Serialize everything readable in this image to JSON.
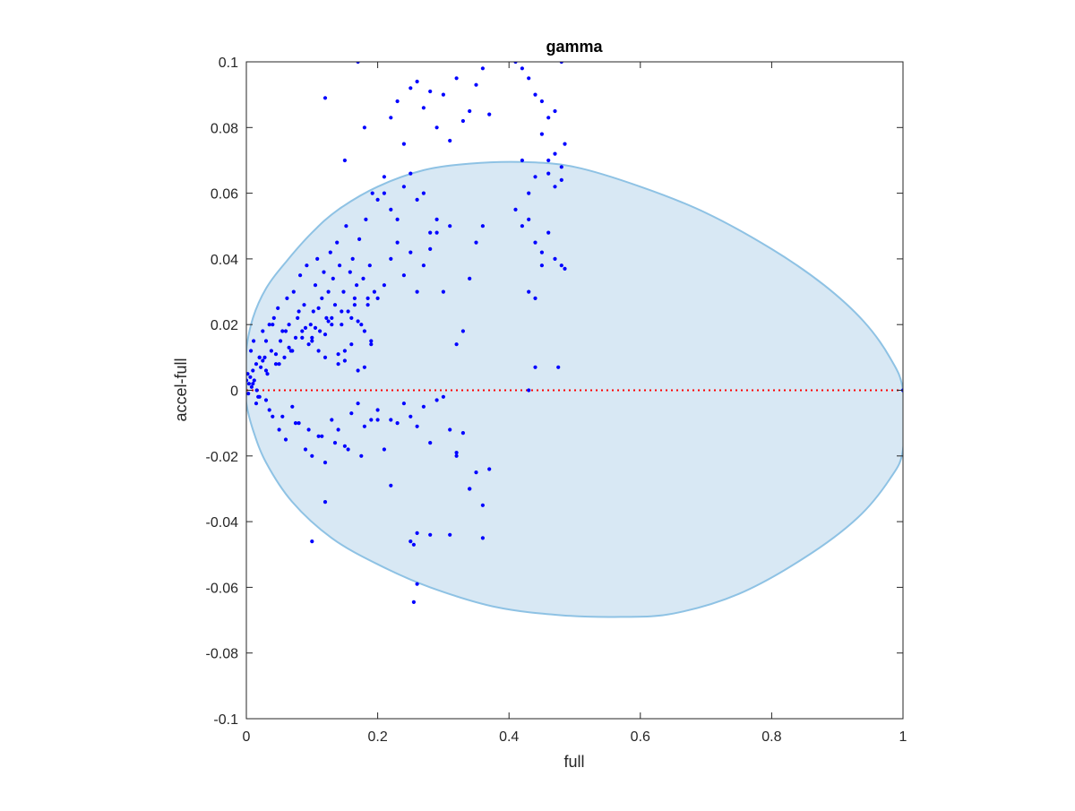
{
  "chart_data": {
    "type": "scatter",
    "title": "gamma",
    "xlabel": "full",
    "ylabel": "accel-full",
    "xlim": [
      0,
      1
    ],
    "ylim": [
      -0.1,
      0.1
    ],
    "xticks": [
      0,
      0.2,
      0.4,
      0.6,
      0.8,
      1
    ],
    "xtick_labels": [
      "0",
      "0.2",
      "0.4",
      "0.6",
      "0.8",
      "1"
    ],
    "yticks": [
      -0.1,
      -0.08,
      -0.06,
      -0.04,
      -0.02,
      0,
      0.02,
      0.04,
      0.06,
      0.08,
      0.1
    ],
    "ytick_labels": [
      "-0.1",
      "-0.08",
      "-0.06",
      "-0.04",
      "-0.02",
      "0",
      "0.02",
      "0.04",
      "0.06",
      "0.08",
      "0.1"
    ],
    "grid": false,
    "box": true,
    "colors": {
      "points": "#0000ff",
      "reference_line": "#ff0000",
      "ellipse_fill": "#d8e8f4",
      "ellipse_edge": "#8ec2e4",
      "axes": "#262626"
    },
    "reference_line": {
      "y": 0,
      "style": "dotted"
    },
    "ellipse_region": {
      "points": [
        [
          0.0,
          0.0
        ],
        [
          0.0,
          0.012
        ],
        [
          0.01,
          0.022
        ],
        [
          0.03,
          0.031
        ],
        [
          0.06,
          0.039
        ],
        [
          0.1,
          0.048
        ],
        [
          0.14,
          0.055
        ],
        [
          0.2,
          0.062
        ],
        [
          0.27,
          0.067
        ],
        [
          0.34,
          0.069
        ],
        [
          0.42,
          0.0695
        ],
        [
          0.5,
          0.068
        ],
        [
          0.6,
          0.062
        ],
        [
          0.7,
          0.054
        ],
        [
          0.8,
          0.043
        ],
        [
          0.88,
          0.032
        ],
        [
          0.94,
          0.021
        ],
        [
          0.98,
          0.01
        ],
        [
          1.0,
          0.0
        ],
        [
          1.0,
          -0.018
        ],
        [
          0.98,
          -0.027
        ],
        [
          0.93,
          -0.039
        ],
        [
          0.85,
          -0.051
        ],
        [
          0.75,
          -0.062
        ],
        [
          0.65,
          -0.068
        ],
        [
          0.57,
          -0.069
        ],
        [
          0.48,
          -0.0685
        ],
        [
          0.38,
          -0.066
        ],
        [
          0.28,
          -0.06
        ],
        [
          0.2,
          -0.053
        ],
        [
          0.13,
          -0.045
        ],
        [
          0.07,
          -0.034
        ],
        [
          0.03,
          -0.022
        ],
        [
          0.01,
          -0.012
        ],
        [
          0.0,
          -0.004
        ]
      ]
    },
    "series": [
      {
        "x": [
          0.0,
          0.002,
          0.004,
          0.006,
          0.008,
          0.01,
          0.012,
          0.015,
          0.018,
          0.02,
          0.003,
          0.007,
          0.011,
          0.016,
          0.022,
          0.025,
          0.028,
          0.032,
          0.035,
          0.038,
          0.042,
          0.045,
          0.048,
          0.052,
          0.055,
          0.058,
          0.062,
          0.065,
          0.068,
          0.072,
          0.075,
          0.078,
          0.082,
          0.085,
          0.088,
          0.092,
          0.095,
          0.098,
          0.102,
          0.105,
          0.108,
          0.112,
          0.115,
          0.118,
          0.122,
          0.125,
          0.128,
          0.132,
          0.135,
          0.138,
          0.142,
          0.145,
          0.148,
          0.152,
          0.155,
          0.158,
          0.162,
          0.165,
          0.168,
          0.172,
          0.175,
          0.178,
          0.182,
          0.185,
          0.188,
          0.192,
          0.195,
          0.03,
          0.04,
          0.05,
          0.06,
          0.07,
          0.08,
          0.09,
          0.1,
          0.11,
          0.12,
          0.13,
          0.14,
          0.15,
          0.16,
          0.17,
          0.18,
          0.19,
          0.2,
          0.21,
          0.22,
          0.23,
          0.24,
          0.25,
          0.26,
          0.27,
          0.28,
          0.29,
          0.3,
          0.31,
          0.32,
          0.33,
          0.34,
          0.35,
          0.36,
          0.37,
          0.1,
          0.11,
          0.12,
          0.13,
          0.14,
          0.15,
          0.16,
          0.17,
          0.18,
          0.19,
          0.2,
          0.21,
          0.22,
          0.23,
          0.24,
          0.25,
          0.26,
          0.27,
          0.28,
          0.29,
          0.3,
          0.31,
          0.32,
          0.33,
          0.34,
          0.35,
          0.36,
          0.12,
          0.15,
          0.17,
          0.18,
          0.21,
          0.22,
          0.23,
          0.24,
          0.25,
          0.26,
          0.27,
          0.28,
          0.29,
          0.3,
          0.31,
          0.32,
          0.33,
          0.34,
          0.35,
          0.36,
          0.37,
          0.41,
          0.42,
          0.43,
          0.44,
          0.45,
          0.46,
          0.47,
          0.48,
          0.485,
          0.41,
          0.42,
          0.43,
          0.44,
          0.45,
          0.46,
          0.47,
          0.48,
          0.42,
          0.43,
          0.44,
          0.45,
          0.46,
          0.47,
          0.48,
          0.485,
          0.43,
          0.44,
          0.45,
          0.46,
          0.47,
          0.48,
          0.2,
          0.21,
          0.22,
          0.23,
          0.24,
          0.25,
          0.26,
          0.27,
          0.28,
          0.29,
          0.02,
          0.03,
          0.04,
          0.05,
          0.06,
          0.07,
          0.08,
          0.09,
          0.1,
          0.11,
          0.12,
          0.13,
          0.14,
          0.15,
          0.16,
          0.17,
          0.18,
          0.19,
          0.2,
          0.22,
          0.25,
          0.28,
          0.32,
          0.34,
          0.36,
          0.1,
          0.12,
          0.26,
          0.31,
          0.26,
          0.255,
          0.255,
          0.475,
          0.44,
          0.43,
          1.0,
          0.01,
          0.02,
          0.03,
          0.015,
          0.025,
          0.035,
          0.045,
          0.055,
          0.065,
          0.075,
          0.085,
          0.095,
          0.105,
          0.115,
          0.125,
          0.135,
          0.145,
          0.155,
          0.165,
          0.175,
          0.185
        ],
        "y": [
          0.003,
          0.005,
          0.002,
          0.004,
          0.001,
          0.006,
          0.003,
          0.008,
          -0.002,
          0.01,
          -0.001,
          0.012,
          0.015,
          0.0,
          0.007,
          0.018,
          0.01,
          0.005,
          0.02,
          0.012,
          0.022,
          0.008,
          0.025,
          0.015,
          0.018,
          0.01,
          0.028,
          0.02,
          0.012,
          0.03,
          0.016,
          0.022,
          0.035,
          0.018,
          0.026,
          0.038,
          0.014,
          0.02,
          0.024,
          0.032,
          0.04,
          0.018,
          0.028,
          0.036,
          0.022,
          0.03,
          0.042,
          0.034,
          0.026,
          0.045,
          0.038,
          0.02,
          0.03,
          0.05,
          0.024,
          0.036,
          0.04,
          0.028,
          0.032,
          0.046,
          0.02,
          0.034,
          0.052,
          0.026,
          0.038,
          0.06,
          0.03,
          -0.003,
          -0.008,
          -0.012,
          -0.015,
          -0.005,
          -0.01,
          -0.018,
          -0.02,
          -0.014,
          -0.022,
          -0.009,
          -0.012,
          -0.017,
          -0.007,
          -0.004,
          -0.011,
          -0.009,
          -0.006,
          -0.018,
          -0.009,
          -0.01,
          -0.004,
          -0.008,
          -0.011,
          -0.005,
          -0.016,
          -0.003,
          -0.002,
          -0.012,
          -0.019,
          -0.013,
          -0.03,
          -0.025,
          -0.035,
          -0.024,
          0.015,
          0.025,
          0.01,
          0.02,
          0.008,
          0.012,
          0.022,
          0.006,
          0.018,
          0.014,
          0.028,
          0.032,
          0.04,
          0.045,
          0.035,
          0.042,
          0.03,
          0.038,
          0.043,
          0.048,
          0.03,
          0.05,
          0.014,
          0.018,
          0.034,
          0.045,
          0.05,
          0.089,
          0.07,
          0.1,
          0.08,
          0.065,
          0.083,
          0.088,
          0.075,
          0.092,
          0.094,
          0.086,
          0.091,
          0.08,
          0.09,
          0.076,
          0.095,
          0.082,
          0.085,
          0.093,
          0.098,
          0.084,
          0.1,
          0.098,
          0.095,
          0.09,
          0.088,
          0.083,
          0.085,
          0.1,
          0.075,
          0.055,
          0.05,
          0.052,
          0.045,
          0.042,
          0.048,
          0.04,
          0.038,
          0.07,
          0.06,
          0.065,
          0.078,
          0.07,
          0.062,
          0.068,
          0.037,
          0.03,
          0.028,
          0.038,
          0.066,
          0.072,
          0.064,
          0.058,
          0.06,
          0.055,
          0.052,
          0.062,
          0.066,
          0.058,
          0.06,
          0.048,
          0.052,
          0.01,
          0.015,
          0.02,
          0.008,
          0.018,
          0.012,
          0.024,
          0.019,
          0.016,
          0.012,
          0.017,
          0.022,
          0.011,
          0.009,
          0.014,
          0.021,
          0.007,
          0.015,
          -0.009,
          -0.029,
          -0.046,
          -0.044,
          -0.02,
          -0.03,
          -0.045,
          -0.046,
          -0.034,
          -0.0435,
          -0.044,
          -0.059,
          -0.0645,
          -0.047,
          0.007,
          0.007,
          0.0,
          0.0,
          0.002,
          -0.002,
          0.006,
          -0.004,
          0.009,
          -0.006,
          0.011,
          -0.008,
          0.013,
          -0.01,
          0.016,
          -0.012,
          0.019,
          -0.014,
          0.021,
          -0.016,
          0.024,
          -0.018,
          0.026,
          -0.02,
          0.028
        ]
      }
    ]
  }
}
